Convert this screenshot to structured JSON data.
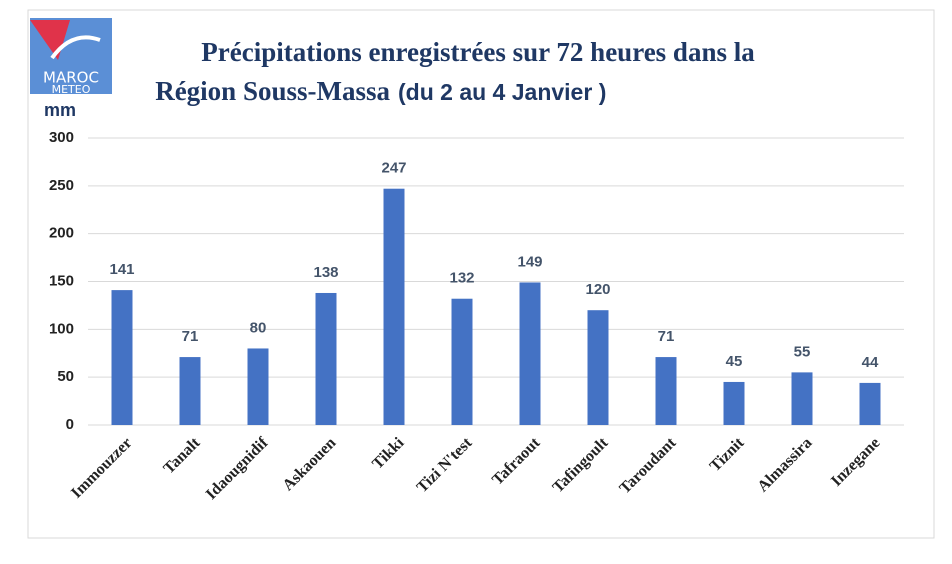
{
  "chart_data": {
    "type": "bar",
    "logo": [
      "MAROC",
      "METEO"
    ],
    "title": [
      "Précipitations enregistrées sur 72 heures dans la",
      "Région Souss-Massa"
    ],
    "subtitle": "(du 2 au 4 Janvier )",
    "y_label": "mm",
    "categories": [
      "Immouzzer",
      "Tanalt",
      "Idaougnidif",
      "Askaouen",
      "Tikki",
      "Tizi N'test",
      "Tafraout",
      "Tafingoult",
      "Taroudant",
      "Tiznit",
      "Almassira",
      "Inzegane"
    ],
    "values": [
      141,
      71,
      80,
      138,
      247,
      132,
      149,
      120,
      71,
      45,
      55,
      44
    ],
    "color": "#4472c4",
    "ylim": [
      0,
      300
    ],
    "yticks": [
      0,
      50,
      100,
      150,
      200,
      250,
      300
    ],
    "grid": true
  }
}
